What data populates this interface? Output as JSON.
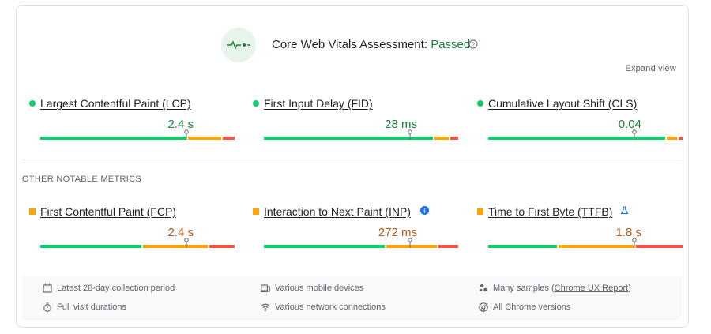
{
  "assessment": {
    "label": "Core Web Vitals Assessment:",
    "status": "Passed",
    "status_color": "#188038"
  },
  "expand_label": "Expand view",
  "colors": {
    "good": "#0cce6b",
    "needs_improvement": "#ffa400",
    "poor": "#ff4e42",
    "good_text": "#188038",
    "ni_text": "#b9591c"
  },
  "core_metrics": [
    {
      "name": "Largest Contentful Paint (LCP)",
      "value": "2.4 s",
      "status": "good",
      "distribution": [
        0.76,
        0.18,
        0.06
      ],
      "marker": 0.75
    },
    {
      "name": "First Input Delay (FID)",
      "value": "28 ms",
      "status": "good",
      "distribution": [
        0.88,
        0.08,
        0.04
      ],
      "marker": 0.75
    },
    {
      "name": "Cumulative Layout Shift (CLS)",
      "value": "0.04",
      "status": "good",
      "distribution": [
        0.92,
        0.06,
        0.02
      ],
      "marker": 0.75
    }
  ],
  "other_label": "OTHER NOTABLE METRICS",
  "other_metrics": [
    {
      "name": "First Contentful Paint (FCP)",
      "value": "2.4 s",
      "status": "ni",
      "distribution": [
        0.53,
        0.34,
        0.13
      ],
      "marker": 0.75,
      "extra_icon": ""
    },
    {
      "name": "Interaction to Next Paint (INP)",
      "value": "272 ms",
      "status": "ni",
      "distribution": [
        0.63,
        0.27,
        0.1
      ],
      "marker": 0.75,
      "extra_icon": "info-icon"
    },
    {
      "name": "Time to First Byte (TTFB)",
      "value": "1.8 s",
      "status": "ni",
      "distribution": [
        0.36,
        0.4,
        0.24
      ],
      "marker": 0.75,
      "extra_icon": "flask-icon"
    }
  ],
  "footer": {
    "period": "Latest 28-day collection period",
    "devices": "Various mobile devices",
    "samples_prefix": "Many samples (",
    "samples_link": "Chrome UX Report",
    "samples_suffix": ")",
    "durations": "Full visit durations",
    "connections": "Various network connections",
    "versions": "All Chrome versions"
  }
}
